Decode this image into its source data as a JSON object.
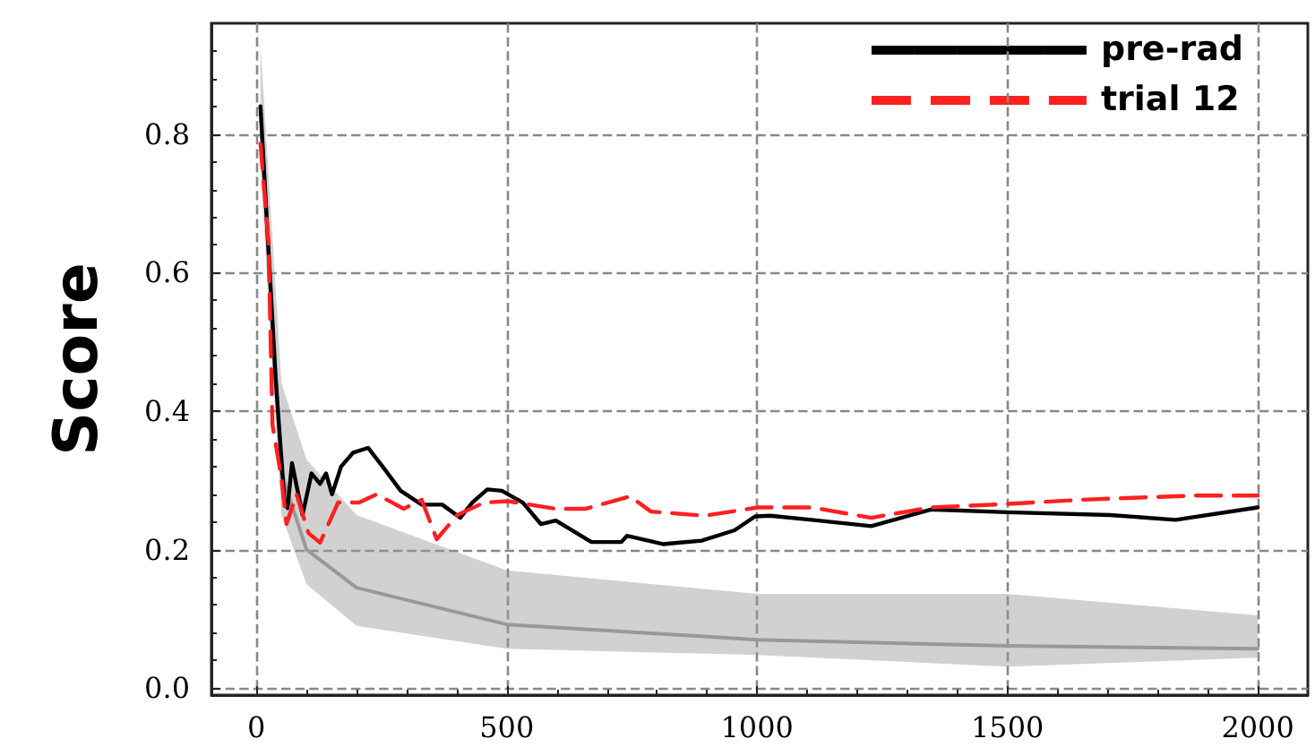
{
  "chart_data": {
    "type": "line",
    "ylabel": "Score",
    "xlim": [
      -90,
      2100
    ],
    "ylim": [
      -0.01,
      0.96
    ],
    "xticks": [
      0,
      500,
      1000,
      1500,
      2000
    ],
    "yticks": [
      {
        "value": 0,
        "label": "0.0"
      },
      0.2,
      0.4,
      0.6,
      0.8
    ],
    "grid": true,
    "legend": "top right",
    "marker": "none",
    "series": [
      {
        "color": "#999999",
        "line_style": "solid",
        "x": [
          8,
          50,
          100,
          200,
          500,
          1000,
          1500,
          2000
        ],
        "values": [
          0.84,
          0.31,
          0.2,
          0.145,
          0.092,
          0.07,
          0.061,
          0.057
        ],
        "lower": [
          0.75,
          0.25,
          0.15,
          0.09,
          0.057,
          0.048,
          0.031,
          0.044
        ],
        "upper": [
          0.93,
          0.44,
          0.33,
          0.25,
          0.17,
          0.136,
          0.136,
          0.105
        ]
      },
      {
        "name": "pre-rad",
        "color": "#000000",
        "line_style": "solid",
        "x": [
          8,
          38,
          56,
          62,
          71,
          92,
          110,
          127,
          139,
          151,
          169,
          193,
          223,
          252,
          288,
          330,
          371,
          407,
          431,
          461,
          490,
          532,
          568,
          598,
          669,
          729,
          740,
          812,
          889,
          955,
          996,
          1026,
          1109,
          1228,
          1347,
          1500,
          1705,
          1836,
          2000
        ],
        "values": [
          0.84,
          0.45,
          0.27,
          0.26,
          0.325,
          0.25,
          0.31,
          0.295,
          0.31,
          0.28,
          0.32,
          0.34,
          0.347,
          0.32,
          0.285,
          0.265,
          0.265,
          0.246,
          0.268,
          0.287,
          0.285,
          0.268,
          0.237,
          0.242,
          0.211,
          0.211,
          0.22,
          0.208,
          0.213,
          0.228,
          0.248,
          0.249,
          0.243,
          0.234,
          0.258,
          0.254,
          0.25,
          0.243,
          0.261
        ]
      },
      {
        "name": "trial 12",
        "color": "#ff2020",
        "line_style": "dashed",
        "x": [
          8,
          24,
          32,
          50,
          60,
          80,
          104,
          127,
          163,
          205,
          240,
          294,
          330,
          360,
          401,
          455,
          502,
          598,
          657,
          746,
          788,
          895,
          1002,
          1109,
          1228,
          1347,
          1500,
          1646,
          1872,
          2000
        ],
        "values": [
          0.786,
          0.645,
          0.38,
          0.303,
          0.237,
          0.28,
          0.224,
          0.21,
          0.268,
          0.268,
          0.28,
          0.259,
          0.272,
          0.215,
          0.25,
          0.268,
          0.27,
          0.259,
          0.259,
          0.277,
          0.255,
          0.249,
          0.261,
          0.261,
          0.246,
          0.261,
          0.266,
          0.272,
          0.278,
          0.278
        ]
      }
    ]
  }
}
